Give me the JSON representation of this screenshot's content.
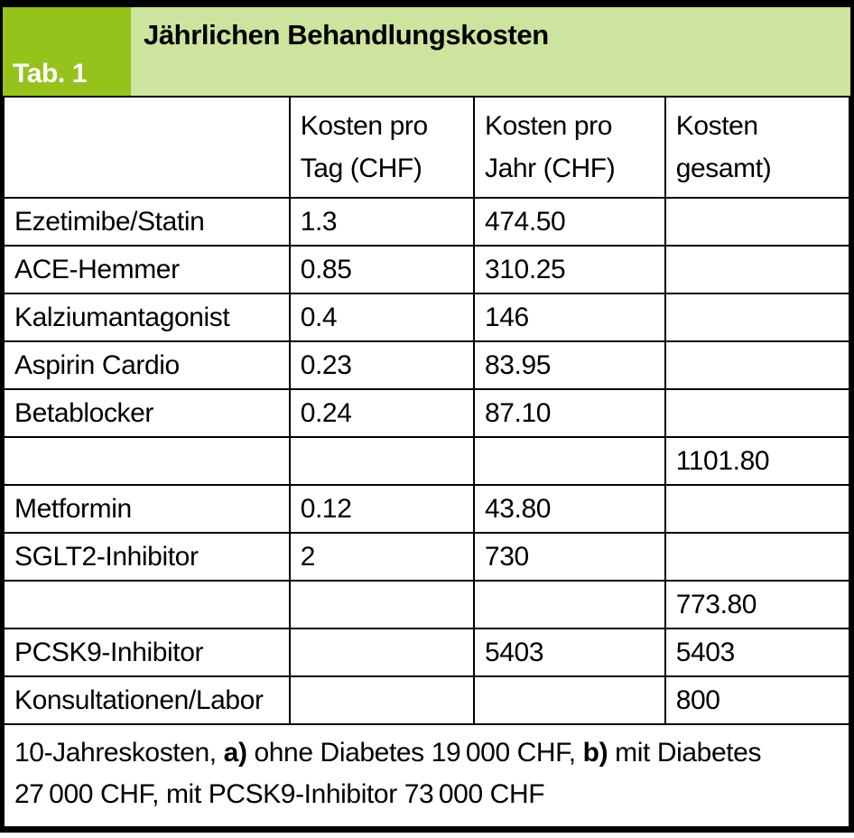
{
  "header": {
    "tab_label": "Tab. 1",
    "title": "Jährlichen Behandlungskosten"
  },
  "colors": {
    "badge_green": "#96c21c",
    "band_green": "#cde49e",
    "border": "#000000",
    "text": "#000000"
  },
  "table": {
    "columns": [
      "",
      "Kosten pro Tag (CHF)",
      "Kosten pro Jahr (CHF)",
      "Kosten gesamt)"
    ],
    "rows": [
      {
        "name": "Ezetimibe/Statin",
        "per_day": "1.3",
        "per_year": "474.50",
        "total": ""
      },
      {
        "name": "ACE-Hemmer",
        "per_day": "0.85",
        "per_year": "310.25",
        "total": ""
      },
      {
        "name": "Kalziumantagonist",
        "per_day": "0.4",
        "per_year": "146",
        "total": ""
      },
      {
        "name": "Aspirin Cardio",
        "per_day": "0.23",
        "per_year": "83.95",
        "total": ""
      },
      {
        "name": "Betablocker",
        "per_day": "0.24",
        "per_year": "87.10",
        "total": ""
      },
      {
        "name": "",
        "per_day": "",
        "per_year": "",
        "total": "1101.80"
      },
      {
        "name": "Metformin",
        "per_day": "0.12",
        "per_year": "43.80",
        "total": ""
      },
      {
        "name": "SGLT2-Inhibitor",
        "per_day": "2",
        "per_year": "730",
        "total": ""
      },
      {
        "name": "",
        "per_day": "",
        "per_year": "",
        "total": "773.80"
      },
      {
        "name": "PCSK9-Inhibitor",
        "per_day": "",
        "per_year": "5403",
        "total": "5403"
      },
      {
        "name": "Konsultationen/Labor",
        "per_day": "",
        "per_year": "",
        "total": "800"
      }
    ],
    "footnote_lines": [
      [
        {
          "text": "10-Jahreskosten, ",
          "bold": false
        },
        {
          "text": "a)",
          "bold": true
        },
        {
          "text": " ohne Diabetes 19 000 CHF, ",
          "bold": false
        },
        {
          "text": "b)",
          "bold": true
        },
        {
          "text": " mit Diabetes",
          "bold": false
        }
      ],
      [
        {
          "text": "27 000 CHF, mit PCSK9-Inhibitor 73 000 CHF",
          "bold": false
        }
      ]
    ]
  }
}
